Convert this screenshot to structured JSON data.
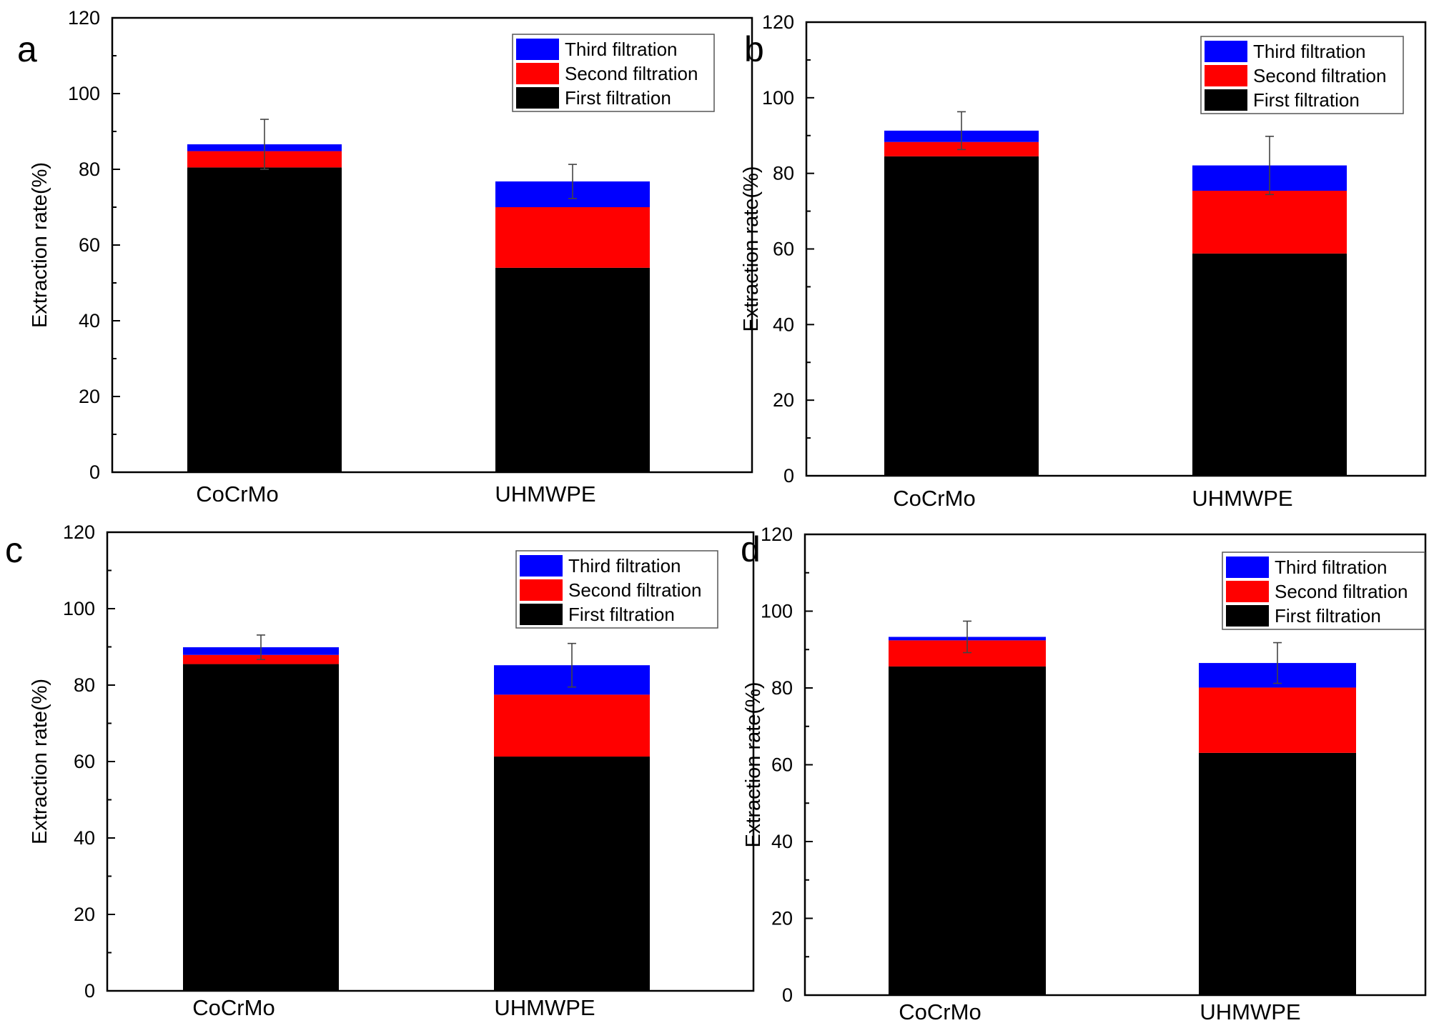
{
  "colors": {
    "first": "#000000",
    "second": "#ff0000",
    "third": "#0000ff"
  },
  "chart_data": [
    {
      "type": "bar",
      "stacked": true,
      "panel": "a",
      "categories": [
        "CoCrMo",
        "UHMWPE"
      ],
      "series": [
        {
          "name": "First filtration",
          "values": [
            80.5,
            54.0
          ]
        },
        {
          "name": "Second filtration",
          "values": [
            4.3,
            16.0
          ]
        },
        {
          "name": "Third filtration",
          "values": [
            1.8,
            6.8
          ]
        }
      ],
      "totals": [
        86.6,
        76.8
      ],
      "error_bars": [
        6.6,
        4.5
      ],
      "xlabel": "",
      "ylabel": "Extraction rate(%)",
      "ylim": [
        0,
        120
      ],
      "yticks": [
        0,
        20,
        40,
        60,
        80,
        100,
        120
      ],
      "legend_position": "top-right",
      "legend_order": [
        "Third filtration",
        "Second filtration",
        "First filtration"
      ]
    },
    {
      "type": "bar",
      "stacked": true,
      "panel": "b",
      "categories": [
        "CoCrMo",
        "UHMWPE"
      ],
      "series": [
        {
          "name": "First filtration",
          "values": [
            84.5,
            58.8
          ]
        },
        {
          "name": "Second filtration",
          "values": [
            3.8,
            16.6
          ]
        },
        {
          "name": "Third filtration",
          "values": [
            3.0,
            6.7
          ]
        }
      ],
      "totals": [
        91.3,
        82.1
      ],
      "error_bars": [
        5.0,
        7.7
      ],
      "xlabel": "",
      "ylabel": "Extraction rate(%)",
      "ylim": [
        0,
        120
      ],
      "yticks": [
        0,
        20,
        40,
        60,
        80,
        100,
        120
      ],
      "legend_position": "top-right",
      "legend_order": [
        "Third filtration",
        "Second filtration",
        "First filtration"
      ]
    },
    {
      "type": "bar",
      "stacked": true,
      "panel": "c",
      "categories": [
        "CoCrMo",
        "UHMWPE"
      ],
      "series": [
        {
          "name": "First filtration",
          "values": [
            85.5,
            61.3
          ]
        },
        {
          "name": "Second filtration",
          "values": [
            2.4,
            16.2
          ]
        },
        {
          "name": "Third filtration",
          "values": [
            2.0,
            7.7
          ]
        }
      ],
      "totals": [
        89.9,
        85.2
      ],
      "error_bars": [
        3.2,
        5.7
      ],
      "xlabel": "",
      "ylabel": "Extraction rate(%)",
      "ylim": [
        0,
        120
      ],
      "yticks": [
        0,
        20,
        40,
        60,
        80,
        100,
        120
      ],
      "legend_position": "top-right",
      "legend_order": [
        "Third filtration",
        "Second filtration",
        "First filtration"
      ]
    },
    {
      "type": "bar",
      "stacked": true,
      "panel": "d",
      "categories": [
        "CoCrMo",
        "UHMWPE"
      ],
      "series": [
        {
          "name": "First filtration",
          "values": [
            85.6,
            63.1
          ]
        },
        {
          "name": "Second filtration",
          "values": [
            6.8,
            17.0
          ]
        },
        {
          "name": "Third filtration",
          "values": [
            0.9,
            6.4
          ]
        }
      ],
      "totals": [
        93.3,
        86.5
      ],
      "error_bars": [
        4.1,
        5.3
      ],
      "xlabel": "",
      "ylabel": "Extraction rate(%)",
      "ylim": [
        0,
        120
      ],
      "yticks": [
        0,
        20,
        40,
        60,
        80,
        100,
        120
      ],
      "legend_position": "top-right",
      "legend_order": [
        "Third filtration",
        "Second filtration",
        "First filtration"
      ]
    }
  ]
}
